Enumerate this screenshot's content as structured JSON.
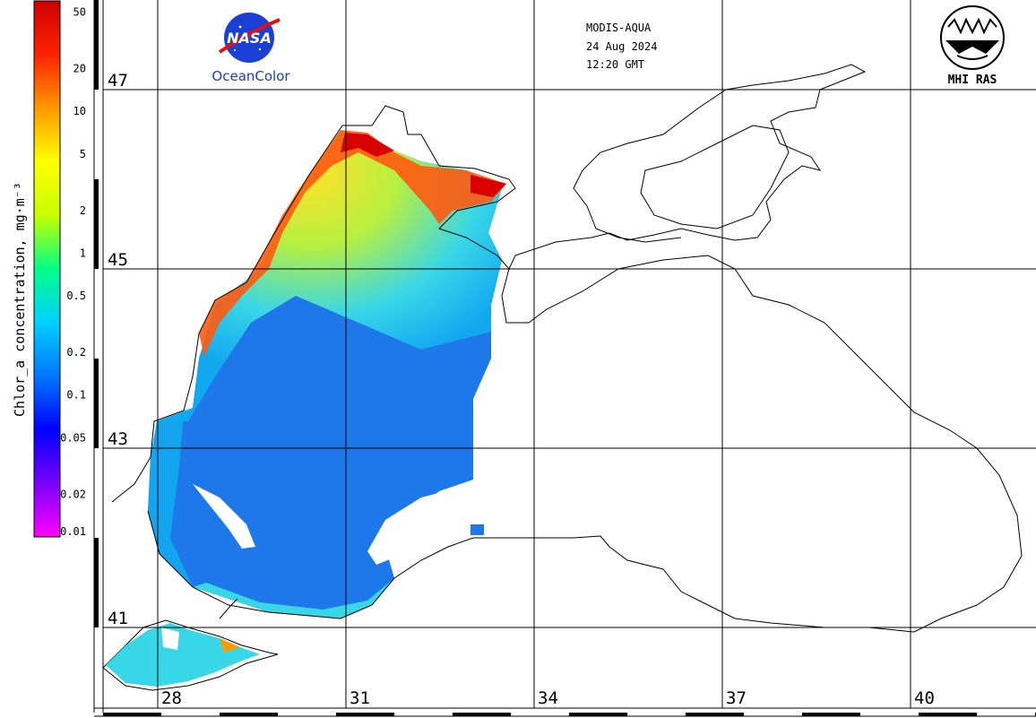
{
  "header": {
    "sensor": "MODIS-AQUA",
    "date": "24 Aug 2024",
    "time": "12:20 GMT"
  },
  "logos": {
    "nasa_wordmark": "NASA",
    "oceancolor": "OceanColor",
    "mhi": "MHI RAS"
  },
  "colorbar": {
    "title": "Chlor_a concentration, mg·m⁻³",
    "ticks": [
      "50",
      "20",
      "10",
      "5",
      "2",
      "1",
      "0.5",
      "0.2",
      "0.1",
      "0.05",
      "0.02",
      "0.01"
    ],
    "tick_values": [
      50,
      20,
      10,
      5,
      2,
      1,
      0.5,
      0.2,
      0.1,
      0.05,
      0.02,
      0.01
    ],
    "range": [
      0.01,
      60
    ],
    "scale": "log",
    "colors": [
      "#ff00ff",
      "#7a00ff",
      "#0000ff",
      "#0077ff",
      "#00d0ff",
      "#00ff88",
      "#c8ff00",
      "#ffff00",
      "#ff9900",
      "#ff2200",
      "#cc0000"
    ]
  },
  "map": {
    "latitudes": [
      "47",
      "45",
      "43",
      "41"
    ],
    "longitudes": [
      "28",
      "31",
      "34",
      "37",
      "40"
    ],
    "water_colors": {
      "open_sea": "#1f78ea",
      "shelf": "#12a8f0",
      "coastal": "#38d7e8",
      "plume": "#b8f040",
      "high": "#ff3a00",
      "no_data": "#ffffff"
    }
  }
}
